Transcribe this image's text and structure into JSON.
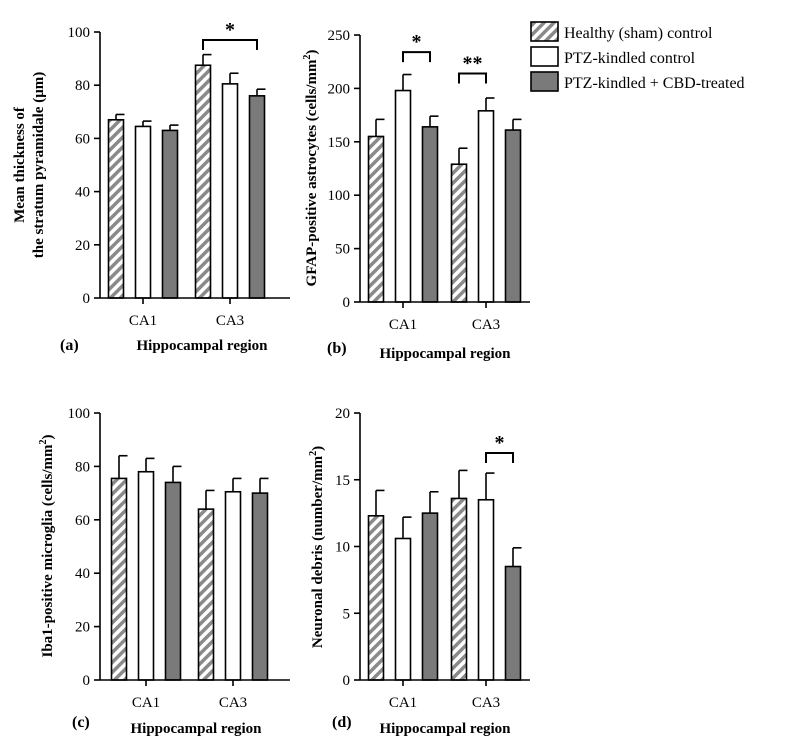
{
  "legend": {
    "entries": [
      {
        "name": "Healthy (sham) control",
        "style": "hatched"
      },
      {
        "name": "PTZ-kindled control",
        "style": "white"
      },
      {
        "name": "PTZ-kindled + CBD-treated",
        "style": "gray"
      }
    ]
  },
  "colors": {
    "gray_fill": "#7a7a7a",
    "hatch_stroke": "#8a8a8a",
    "axis": "#000000",
    "background": "#ffffff"
  },
  "chart_data": [
    {
      "type": "bar",
      "panel_label": "(a)",
      "categories": [
        "CA1",
        "CA3"
      ],
      "series": [
        {
          "name": "Healthy (sham) control",
          "values": [
            67,
            87.5
          ],
          "errors": [
            2,
            4
          ]
        },
        {
          "name": "PTZ-kindled control",
          "values": [
            64.5,
            80.5
          ],
          "errors": [
            2,
            4
          ]
        },
        {
          "name": "PTZ-kindled + CBD-treated",
          "values": [
            63,
            76
          ],
          "errors": [
            2,
            2.5
          ]
        }
      ],
      "ylim": [
        0,
        100
      ],
      "yticks": [
        "0",
        "20",
        "40",
        "60",
        "80",
        "100"
      ],
      "ylabel_line1": "Mean thickness of",
      "ylabel_line2": "the stratum pyramidale (μm)",
      "xlabel": "Hippocampal region",
      "significance": [
        {
          "category": 1,
          "from": 0,
          "to": 2,
          "label": "*",
          "level": 97
        }
      ]
    },
    {
      "type": "bar",
      "panel_label": "(b)",
      "categories": [
        "CA1",
        "CA3"
      ],
      "series": [
        {
          "name": "Healthy (sham) control",
          "values": [
            155,
            129
          ],
          "errors": [
            16,
            15
          ]
        },
        {
          "name": "PTZ-kindled control",
          "values": [
            198,
            179
          ],
          "errors": [
            15,
            12
          ]
        },
        {
          "name": "PTZ-kindled + CBD-treated",
          "values": [
            164,
            161
          ],
          "errors": [
            10,
            10
          ]
        }
      ],
      "ylim": [
        0,
        250
      ],
      "yticks": [
        "0",
        "50",
        "100",
        "150",
        "200",
        "250"
      ],
      "ylabel_line1": "GFAP-positive astrocytes (cells/mm",
      "ylabel_sup": "2",
      "ylabel_tail": ")",
      "xlabel": "Hippocampal region",
      "significance": [
        {
          "category": 0,
          "from": 1,
          "to": 2,
          "label": "*",
          "level": 234
        },
        {
          "category": 1,
          "from": 0,
          "to": 1,
          "label": "**",
          "level": 214
        }
      ]
    },
    {
      "type": "bar",
      "panel_label": "(c)",
      "categories": [
        "CA1",
        "CA3"
      ],
      "series": [
        {
          "name": "Healthy (sham) control",
          "values": [
            75.5,
            64
          ],
          "errors": [
            8.5,
            7
          ]
        },
        {
          "name": "PTZ-kindled control",
          "values": [
            78,
            70.5
          ],
          "errors": [
            5,
            5
          ]
        },
        {
          "name": "PTZ-kindled + CBD-treated",
          "values": [
            74,
            70
          ],
          "errors": [
            6,
            5.5
          ]
        }
      ],
      "ylim": [
        0,
        100
      ],
      "yticks": [
        "0",
        "20",
        "40",
        "60",
        "80",
        "100"
      ],
      "ylabel_line1": "Iba1-positive microglia (cells/mm",
      "ylabel_sup": "2",
      "ylabel_tail": ")",
      "xlabel": "Hippocampal region",
      "significance": []
    },
    {
      "type": "bar",
      "panel_label": "(d)",
      "categories": [
        "CA1",
        "CA3"
      ],
      "series": [
        {
          "name": "Healthy (sham) control",
          "values": [
            12.3,
            13.6
          ],
          "errors": [
            1.9,
            2.1
          ]
        },
        {
          "name": "PTZ-kindled control",
          "values": [
            10.6,
            13.5
          ],
          "errors": [
            1.6,
            2.0
          ]
        },
        {
          "name": "PTZ-kindled + CBD-treated",
          "values": [
            12.5,
            8.5
          ],
          "errors": [
            1.6,
            1.4
          ]
        }
      ],
      "ylim": [
        0,
        20
      ],
      "yticks": [
        "0",
        "5",
        "10",
        "15",
        "20"
      ],
      "ylabel_line1": "Neuronal debris (number/mm",
      "ylabel_sup": "2",
      "ylabel_tail": ")",
      "xlabel": "Hippocampal region",
      "significance": [
        {
          "category": 1,
          "from": 1,
          "to": 2,
          "label": "*",
          "level": 17
        }
      ]
    }
  ]
}
